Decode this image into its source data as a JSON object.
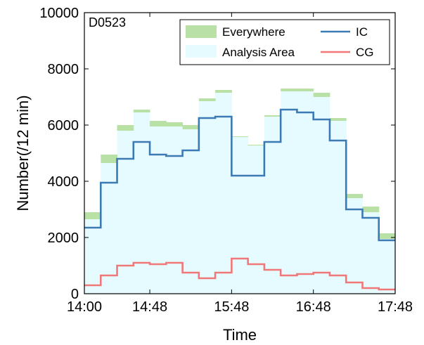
{
  "chart_data": {
    "type": "step",
    "annotation": "D0523",
    "xlabel": "Time",
    "ylabel": "Number(/12 min)",
    "ylim": [
      0,
      10000
    ],
    "y_ticks": [
      0,
      2000,
      4000,
      6000,
      8000,
      10000
    ],
    "y_tick_labels": [
      "0",
      "2000",
      "4000",
      "6000",
      "8000",
      "10000"
    ],
    "x_ticks": [
      "14:00",
      "14:48",
      "15:48",
      "16:48",
      "17:48"
    ],
    "x_tick_bins": [
      0,
      4,
      9,
      14,
      19
    ],
    "bin_count": 19,
    "bin_minutes": 12,
    "legend_position": "top-right",
    "colors": {
      "everywhere": "#b9e0a5",
      "analysis_area": "#e6fbff",
      "ic": "#3c7ab4",
      "cg": "#f07878"
    },
    "series": [
      {
        "name": "Everywhere",
        "style": "band",
        "values": [
          2900,
          4950,
          6000,
          6550,
          6150,
          6100,
          6000,
          6950,
          7250,
          5600,
          5300,
          6350,
          7300,
          7300,
          7150,
          6250,
          3550,
          3100,
          2150
        ],
        "lower": [
          2650,
          4650,
          5800,
          6450,
          5950,
          5950,
          5850,
          6850,
          7150,
          5600,
          5300,
          6300,
          7200,
          7200,
          7000,
          6150,
          3400,
          2900,
          1950
        ]
      },
      {
        "name": "Analysis Area",
        "style": "fill",
        "values": [
          2650,
          4650,
          5800,
          6450,
          5950,
          5950,
          5850,
          6850,
          7150,
          5600,
          5300,
          6300,
          7200,
          7200,
          7000,
          6150,
          3400,
          2900,
          1950
        ]
      },
      {
        "name": "IC",
        "style": "line",
        "values": [
          2350,
          3950,
          4800,
          5400,
          4950,
          4900,
          5100,
          6250,
          6300,
          4200,
          4200,
          5400,
          6550,
          6450,
          6200,
          5450,
          3000,
          2700,
          1900
        ]
      },
      {
        "name": "CG",
        "style": "line",
        "values": [
          300,
          650,
          1000,
          1100,
          1050,
          1100,
          750,
          550,
          750,
          1250,
          1050,
          850,
          650,
          700,
          750,
          650,
          400,
          200,
          150
        ]
      }
    ]
  }
}
